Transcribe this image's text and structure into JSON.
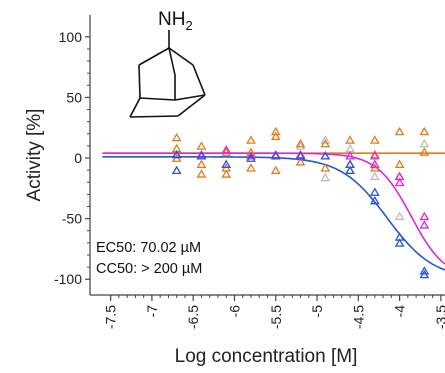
{
  "chart_data": {
    "type": "scatter",
    "xlabel": "Log concentration [M]",
    "ylabel": "Activity [%]",
    "xlim": [
      -7.75,
      -3.45
    ],
    "ylim": [
      -113,
      118
    ],
    "x_ticks": [
      -7.5,
      -7,
      -6.5,
      -6,
      -5.5,
      -5,
      -4.5,
      -4,
      -3.5
    ],
    "x_tick_labels": [
      "-7.5",
      "-7",
      "-6.5",
      "-6",
      "-5.5",
      "-5",
      "-4.5",
      "-4",
      "-3.5"
    ],
    "y_ticks": [
      100,
      50,
      0,
      -50,
      -100
    ],
    "y_tick_labels": [
      "100",
      "50",
      "0",
      "-50",
      "-100"
    ],
    "annotations": [
      "EC50: 70.02 µM",
      "CC50: > 200 µM"
    ],
    "molecule_label": "NH",
    "molecule_label_subscript": "2",
    "colors": {
      "orange": "#e07b1a",
      "magenta": "#d92bd2",
      "blue": "#2456d6",
      "gray": "#bdbdbd"
    },
    "marker": "triangle-open",
    "series": [
      {
        "color": "orange",
        "points": [
          [
            -6.7,
            17
          ],
          [
            -6.7,
            8
          ],
          [
            -6.7,
            0
          ],
          [
            -6.4,
            10
          ],
          [
            -6.4,
            -5
          ],
          [
            -6.4,
            -13
          ],
          [
            -6.1,
            5
          ],
          [
            -6.1,
            -8
          ],
          [
            -6.1,
            -13
          ],
          [
            -5.8,
            15
          ],
          [
            -5.8,
            5
          ],
          [
            -5.8,
            -8
          ],
          [
            -5.5,
            22
          ],
          [
            -5.5,
            18
          ],
          [
            -5.5,
            -10
          ],
          [
            -5.2,
            12
          ],
          [
            -5.2,
            2
          ],
          [
            -5.2,
            -3
          ],
          [
            -4.9,
            12
          ],
          [
            -4.9,
            -8
          ],
          [
            -4.6,
            15
          ],
          [
            -4.6,
            -5
          ],
          [
            -4.6,
            -10
          ],
          [
            -4.3,
            15
          ],
          [
            -4.3,
            3
          ],
          [
            -4.3,
            -8
          ],
          [
            -4.0,
            22
          ],
          [
            -4.0,
            -5
          ],
          [
            -4.0,
            -15
          ],
          [
            -3.7,
            22
          ],
          [
            -3.7,
            5
          ]
        ],
        "fit": {
          "type": "flat",
          "y": 4
        }
      },
      {
        "color": "magenta",
        "points": [
          [
            -6.7,
            3
          ],
          [
            -6.4,
            3
          ],
          [
            -6.1,
            7
          ],
          [
            -5.8,
            2
          ],
          [
            -5.5,
            3
          ],
          [
            -5.2,
            3
          ],
          [
            -4.9,
            2
          ],
          [
            -4.6,
            2
          ],
          [
            -4.3,
            2
          ],
          [
            -4.3,
            -5
          ],
          [
            -4.0,
            -15
          ],
          [
            -4.0,
            -20
          ],
          [
            -3.7,
            -48
          ],
          [
            -3.7,
            -55
          ]
        ],
        "fit": {
          "type": "sigmoid",
          "top": 4,
          "bottom": -100,
          "logEC50": -3.86,
          "hill": 2.1
        }
      },
      {
        "color": "blue",
        "points": [
          [
            -6.7,
            -10
          ],
          [
            -6.7,
            3
          ],
          [
            -6.4,
            2
          ],
          [
            -6.1,
            -5
          ],
          [
            -5.8,
            0
          ],
          [
            -5.5,
            2
          ],
          [
            -5.2,
            2
          ],
          [
            -4.9,
            2
          ],
          [
            -4.6,
            -5
          ],
          [
            -4.6,
            -10
          ],
          [
            -4.3,
            -28
          ],
          [
            -4.3,
            -35
          ],
          [
            -4.0,
            -65
          ],
          [
            -4.0,
            -70
          ],
          [
            -3.7,
            -93
          ],
          [
            -3.7,
            -96
          ]
        ],
        "fit": {
          "type": "sigmoid",
          "top": 1,
          "bottom": -100,
          "logEC50": -4.15,
          "hill": 1.55
        }
      },
      {
        "color": "gray",
        "points": [
          [
            -5.2,
            10
          ],
          [
            -4.9,
            15
          ],
          [
            -4.9,
            -16
          ],
          [
            -4.6,
            8
          ],
          [
            -4.3,
            -15
          ],
          [
            -4.0,
            -48
          ],
          [
            -3.7,
            12
          ]
        ],
        "fit": null
      }
    ],
    "grid": false
  }
}
